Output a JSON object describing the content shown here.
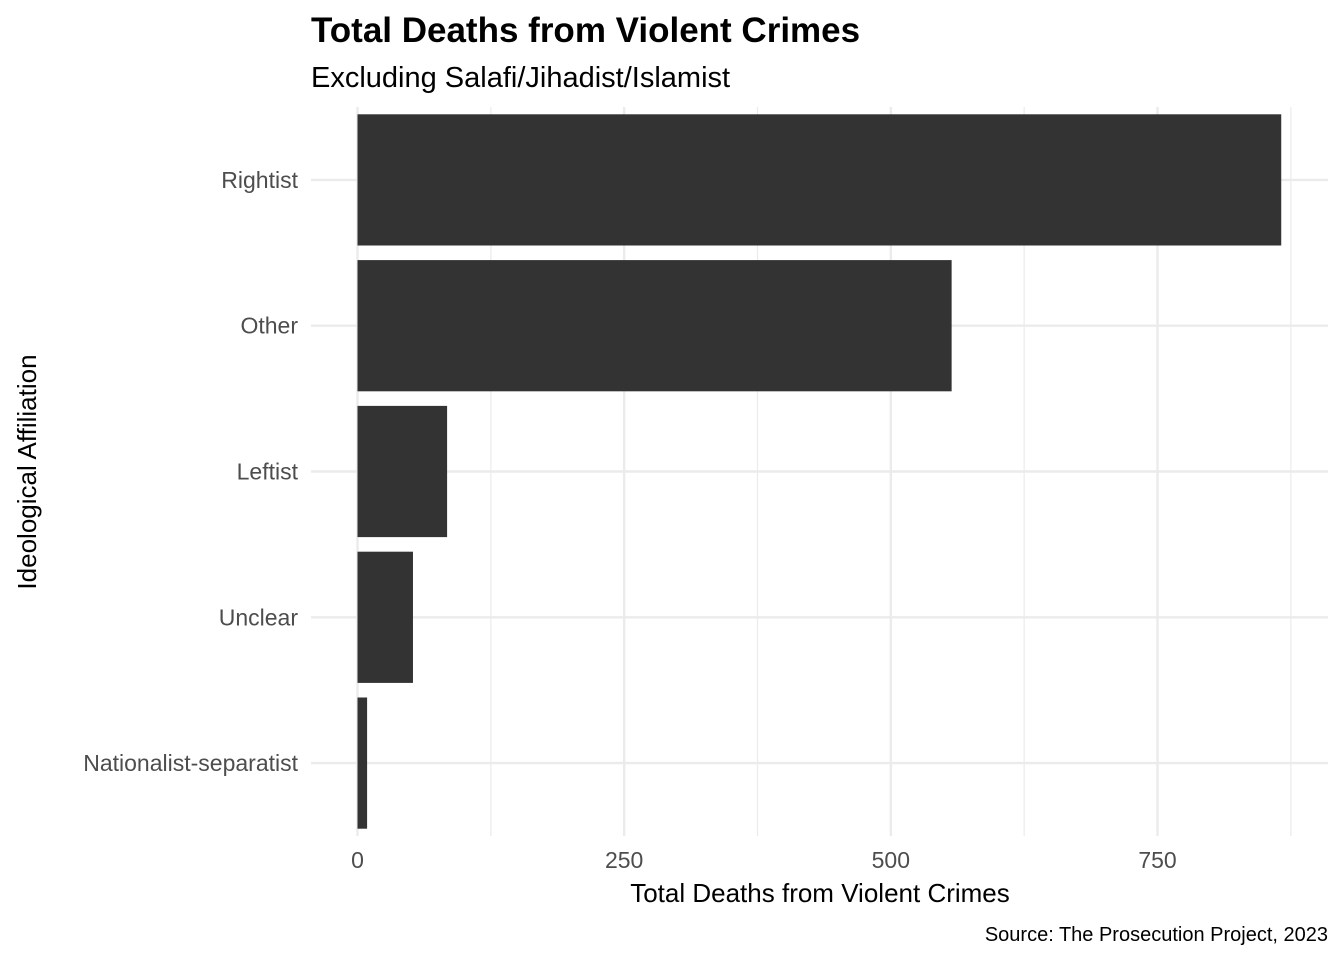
{
  "chart_data": {
    "type": "bar",
    "orientation": "horizontal",
    "title": "Total Deaths from Violent Crimes",
    "subtitle": "Excluding Salafi/Jihadist/Islamist",
    "xlabel": "Total Deaths from Violent Crimes",
    "ylabel": "Ideological Affiliation",
    "caption": "Source: The Prosecution Project, 2023",
    "categories": [
      "Rightist",
      "Other",
      "Leftist",
      "Unclear",
      "Nationalist-separatist"
    ],
    "values": [
      866,
      557,
      84,
      52,
      9
    ],
    "xlim": [
      0,
      910
    ],
    "xticks": [
      0,
      250,
      500,
      750
    ],
    "xtick_labels": [
      "0",
      "250",
      "500",
      "750"
    ],
    "grid": true,
    "bar_color": "#333333",
    "theme": "minimal"
  }
}
